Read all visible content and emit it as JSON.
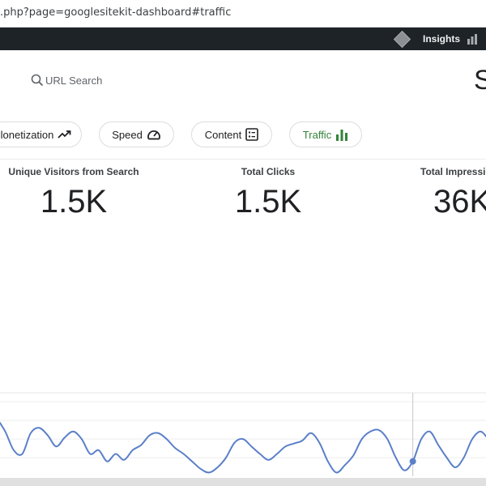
{
  "browser": {
    "url": ".php?page=googlesitekit-dashboard#traffic"
  },
  "admin_bar": {
    "insights_label": "Insights",
    "icons": [
      "sitekit-diamond-icon",
      "bar-chart-icon"
    ]
  },
  "header": {
    "search_label": "URL Search",
    "brand_partial": "S"
  },
  "nav_chips": [
    {
      "label": "lonetization",
      "icon": "trending-up-icon",
      "active": false
    },
    {
      "label": "Speed",
      "icon": "speedometer-icon",
      "active": false
    },
    {
      "label": "Content",
      "icon": "content-list-icon",
      "active": false
    },
    {
      "label": "Traffic",
      "icon": "bar-chart-icon",
      "active": true
    }
  ],
  "metrics": [
    {
      "label": "Unique Visitors from Search",
      "value": "1.5K"
    },
    {
      "label": "Total Clicks",
      "value": "1.5K"
    },
    {
      "label": "Total Impressi",
      "value": "36K"
    }
  ],
  "colors": {
    "accent_green": "#34823b",
    "line_blue": "#5b7fc9",
    "admin_bar": "#1d2327"
  },
  "chart_data": {
    "type": "line",
    "title": "",
    "xlabel": "",
    "ylabel": "",
    "ylim": [
      0,
      100
    ],
    "series": [
      {
        "values": [
          78,
          60,
          35,
          30,
          58,
          65,
          55,
          40,
          52,
          60,
          50,
          30,
          35,
          20,
          30,
          22,
          35,
          42,
          55,
          58,
          50,
          38,
          30,
          20,
          10,
          5,
          12,
          25,
          45,
          50,
          40,
          30,
          22,
          30,
          40,
          44,
          48,
          58,
          45,
          20,
          5,
          15,
          28,
          50,
          60,
          62,
          50,
          25,
          8,
          20,
          50,
          60,
          42,
          25,
          12,
          25,
          50,
          60,
          48
        ]
      }
    ],
    "highlight_index": 49,
    "grid": true
  }
}
